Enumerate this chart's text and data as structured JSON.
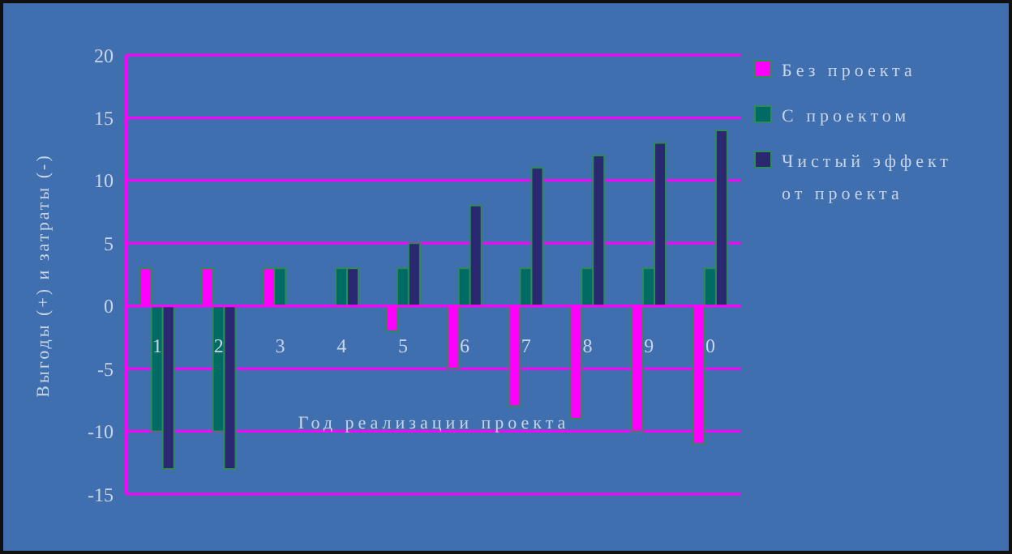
{
  "chart_data": {
    "type": "bar",
    "xlabel": "Год реализации проекта",
    "ylabel": "Выгоды (+) и затраты (-)",
    "categories": [
      "1",
      "2",
      "3",
      "4",
      "5",
      "6",
      "7",
      "8",
      "9",
      "0"
    ],
    "series": [
      {
        "name": "Без проекта",
        "color": "#ff00ff",
        "values": [
          3,
          3,
          3,
          0,
          -2,
          -5,
          -8,
          -9,
          -10,
          -11
        ]
      },
      {
        "name": "С проектом",
        "color": "#006a64",
        "values": [
          -10,
          -10,
          3,
          3,
          3,
          3,
          3,
          3,
          3,
          3
        ]
      },
      {
        "name": "Чистый эффект от проекта",
        "color": "#2a2870",
        "values": [
          -13,
          -13,
          0,
          3,
          5,
          8,
          11,
          12,
          13,
          14
        ]
      }
    ],
    "ylim": [
      -15,
      20
    ],
    "yticks": [
      -15,
      -10,
      -5,
      0,
      5,
      10,
      15,
      20
    ],
    "grid": "y",
    "legend": "top right"
  }
}
